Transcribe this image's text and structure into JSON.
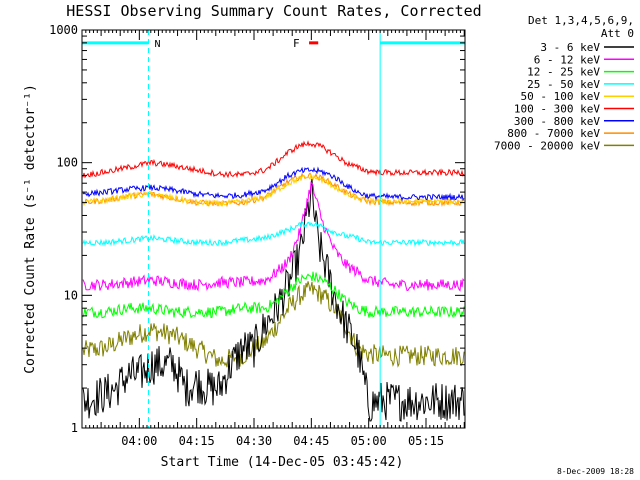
{
  "chart_data": {
    "type": "line",
    "title": "HESSI Observing Summary Count Rates, Corrected",
    "xlabel": "Start Time (14-Dec-05 03:45:42)",
    "ylabel": "Corrected Count Rate (s⁻¹ detector⁻¹)",
    "y_scale": "log",
    "ylim": [
      1,
      1000
    ],
    "xlim_minutes": [
      3.75,
      5.42
    ],
    "x_ticks": [
      {
        "label": "04:00",
        "value": 4.0
      },
      {
        "label": "04:15",
        "value": 4.25
      },
      {
        "label": "04:30",
        "value": 4.5
      },
      {
        "label": "04:45",
        "value": 4.75
      },
      {
        "label": "05:00",
        "value": 5.0
      },
      {
        "label": "05:15",
        "value": 5.25
      }
    ],
    "y_ticks": [
      {
        "label": "1",
        "value": 1
      },
      {
        "label": "10",
        "value": 10
      },
      {
        "label": "100",
        "value": 100
      },
      {
        "label": "1000",
        "value": 1000
      }
    ],
    "legend_header": [
      "Det 1,3,4,5,6,9,",
      "Att 0"
    ],
    "legend_position": "right",
    "series": [
      {
        "name": "3 - 6 keV",
        "color": "#000000",
        "x": [
          3.75,
          3.85,
          3.9,
          3.95,
          4.0,
          4.05,
          4.1,
          4.15,
          4.2,
          4.25,
          4.3,
          4.35,
          4.4,
          4.45,
          4.5,
          4.55,
          4.6,
          4.65,
          4.7,
          4.75,
          4.78,
          4.82,
          4.85,
          4.9,
          4.95,
          5.0,
          5.05,
          5.1,
          5.2,
          5.3,
          5.42
        ],
        "y": [
          1.6,
          1.8,
          2.0,
          2.5,
          2.5,
          3.0,
          3.0,
          3.0,
          2.0,
          2.2,
          2.0,
          2.0,
          3.0,
          4.0,
          4.0,
          6.0,
          8.0,
          12,
          20,
          60,
          25,
          15,
          10,
          6,
          4,
          1.5,
          1.6,
          1.6,
          1.6,
          1.6,
          1.6
        ]
      },
      {
        "name": "6 - 12 keV",
        "color": "#ff00ff",
        "x": [
          3.75,
          3.85,
          3.95,
          4.05,
          4.15,
          4.25,
          4.35,
          4.45,
          4.55,
          4.6,
          4.65,
          4.7,
          4.75,
          4.8,
          4.85,
          4.9,
          4.95,
          5.0,
          5.1,
          5.2,
          5.3,
          5.42
        ],
        "y": [
          12,
          12,
          12.5,
          13,
          12.5,
          12,
          12.5,
          12.5,
          13,
          15,
          18,
          30,
          70,
          35,
          22,
          17,
          15,
          13,
          12,
          12,
          12,
          12
        ]
      },
      {
        "name": "12 - 25 keV",
        "color": "#00ff00",
        "x": [
          3.75,
          3.85,
          3.95,
          4.05,
          4.15,
          4.25,
          4.35,
          4.45,
          4.55,
          4.6,
          4.65,
          4.7,
          4.75,
          4.8,
          4.85,
          4.9,
          4.95,
          5.0,
          5.1,
          5.2,
          5.3,
          5.42
        ],
        "y": [
          7.5,
          7.5,
          8,
          8,
          7.5,
          7.5,
          7.5,
          8,
          8,
          9,
          11,
          13,
          14,
          13,
          11,
          9,
          8,
          7.5,
          7.5,
          7.5,
          7.5,
          7.5
        ]
      },
      {
        "name": "25 - 50 keV",
        "color": "#00ffff",
        "x": [
          3.75,
          3.85,
          3.95,
          4.05,
          4.15,
          4.25,
          4.35,
          4.45,
          4.55,
          4.6,
          4.65,
          4.7,
          4.75,
          4.8,
          4.85,
          4.9,
          4.95,
          5.0,
          5.1,
          5.2,
          5.3,
          5.42
        ],
        "y": [
          25,
          25,
          26,
          27,
          26,
          25,
          25,
          26,
          27,
          29,
          31,
          34,
          35,
          33,
          30,
          28,
          27,
          25,
          25,
          25,
          25,
          25
        ]
      },
      {
        "name": "50 - 100 keV",
        "color": "#ffd000",
        "x": [
          3.75,
          3.85,
          3.95,
          4.05,
          4.15,
          4.25,
          4.35,
          4.45,
          4.55,
          4.6,
          4.65,
          4.7,
          4.75,
          4.8,
          4.85,
          4.9,
          4.95,
          5.0,
          5.1,
          5.2,
          5.3,
          5.42
        ],
        "y": [
          50,
          52,
          56,
          58,
          54,
          50,
          49,
          51,
          55,
          62,
          70,
          76,
          78,
          74,
          66,
          58,
          54,
          52,
          51,
          51,
          51,
          51
        ]
      },
      {
        "name": "100 - 300 keV",
        "color": "#ff0000",
        "x": [
          3.75,
          3.85,
          3.95,
          4.05,
          4.15,
          4.25,
          4.35,
          4.45,
          4.55,
          4.6,
          4.65,
          4.7,
          4.75,
          4.8,
          4.85,
          4.9,
          4.95,
          5.0,
          5.1,
          5.2,
          5.3,
          5.42
        ],
        "y": [
          80,
          85,
          92,
          100,
          95,
          88,
          82,
          81,
          88,
          102,
          120,
          135,
          140,
          130,
          115,
          100,
          92,
          86,
          84,
          84,
          84,
          84
        ]
      },
      {
        "name": "300 - 800 keV",
        "color": "#0000ff",
        "x": [
          3.75,
          3.85,
          3.95,
          4.05,
          4.15,
          4.25,
          4.35,
          4.45,
          4.55,
          4.6,
          4.65,
          4.7,
          4.75,
          4.8,
          4.85,
          4.9,
          4.95,
          5.0,
          5.1,
          5.2,
          5.3,
          5.42
        ],
        "y": [
          58,
          60,
          63,
          65,
          62,
          58,
          56,
          57,
          62,
          70,
          80,
          86,
          88,
          85,
          78,
          68,
          60,
          56,
          55,
          55,
          55,
          55
        ]
      },
      {
        "name": "800 - 7000 keV",
        "color": "#ff8c00",
        "x": [
          3.75,
          3.85,
          3.95,
          4.05,
          4.15,
          4.25,
          4.35,
          4.45,
          4.55,
          4.6,
          4.65,
          4.7,
          4.75,
          4.8,
          4.85,
          4.9,
          4.95,
          5.0,
          5.1,
          5.2,
          5.3,
          5.42
        ],
        "y": [
          50,
          52,
          56,
          58,
          54,
          50,
          49,
          50,
          55,
          63,
          72,
          78,
          80,
          76,
          68,
          60,
          54,
          51,
          50,
          50,
          50,
          50
        ]
      },
      {
        "name": "7000 - 20000 keV",
        "color": "#808000",
        "x": [
          3.75,
          3.85,
          3.95,
          4.05,
          4.15,
          4.25,
          4.35,
          4.45,
          4.55,
          4.6,
          4.65,
          4.7,
          4.75,
          4.8,
          4.85,
          4.9,
          4.95,
          5.0,
          5.1,
          5.2,
          5.3,
          5.42
        ],
        "y": [
          3.8,
          4.0,
          4.8,
          5.5,
          5.0,
          4.0,
          3.2,
          3.5,
          4.5,
          6,
          8,
          10,
          11,
          10,
          8,
          6,
          4,
          3.6,
          3.5,
          3.5,
          3.5,
          3.5
        ]
      }
    ],
    "annotations": [
      {
        "text": "N",
        "color": "#00ffff"
      },
      {
        "text": "F",
        "color": "#ff0000"
      }
    ],
    "night_bars": [
      {
        "x": [
          3.75,
          4.04
        ],
        "y": 800
      },
      {
        "x": [
          5.05,
          5.42
        ],
        "y": 800
      }
    ],
    "flare_bar": {
      "x": [
        4.74,
        4.78
      ],
      "y": 800
    },
    "vlines": [
      {
        "x": 4.04,
        "style": "dashed"
      },
      {
        "x": 5.05,
        "style": "solid"
      },
      {
        "x": 5.42,
        "style": "dashed"
      }
    ]
  },
  "timestamp": "8-Dec-2009 18:28"
}
